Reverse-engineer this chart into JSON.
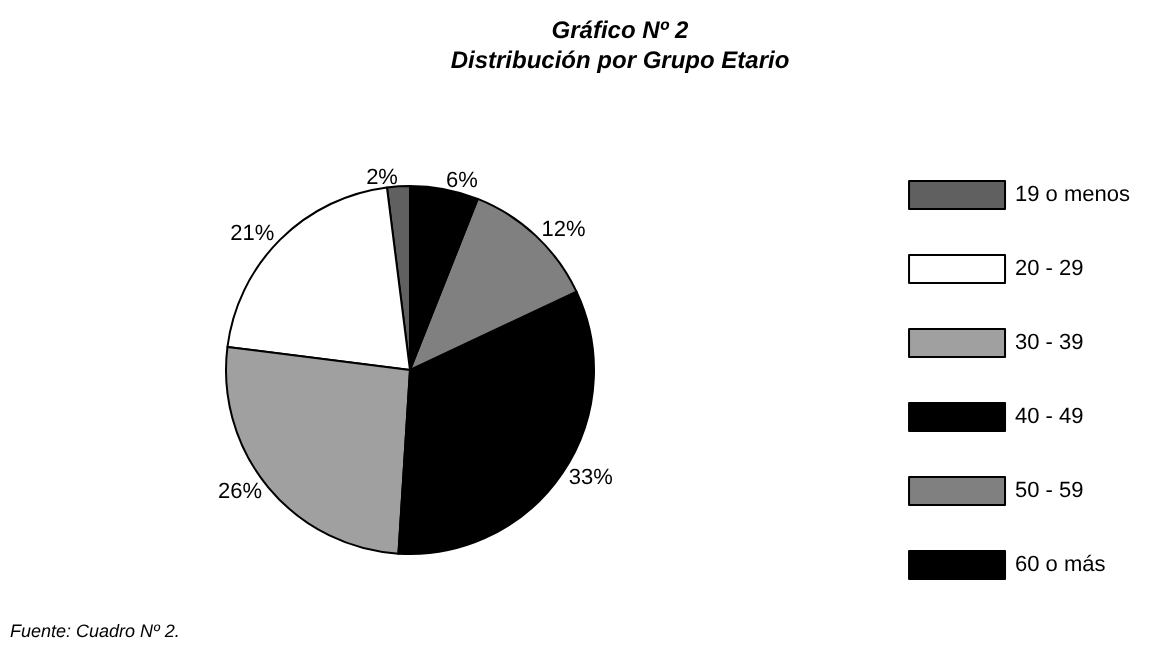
{
  "chart_data": {
    "type": "pie",
    "title": "Gráfico Nº 2",
    "subtitle": "Distribución por Grupo Etario",
    "categories": [
      "19 o menos",
      "20 - 29",
      "30 - 39",
      "40 - 49",
      "50 - 59",
      "60 o más"
    ],
    "values": [
      2,
      21,
      26,
      33,
      12,
      6
    ],
    "value_labels": [
      "2%",
      "21%",
      "26%",
      "33%",
      "12%",
      "6%"
    ],
    "colors": [
      "#606060",
      "#ffffff",
      "#a0a0a0",
      "#000000",
      "#808080",
      "#000000"
    ],
    "legend": "right",
    "annotations": [
      "Fuente: Cuadro Nº 2."
    ]
  }
}
